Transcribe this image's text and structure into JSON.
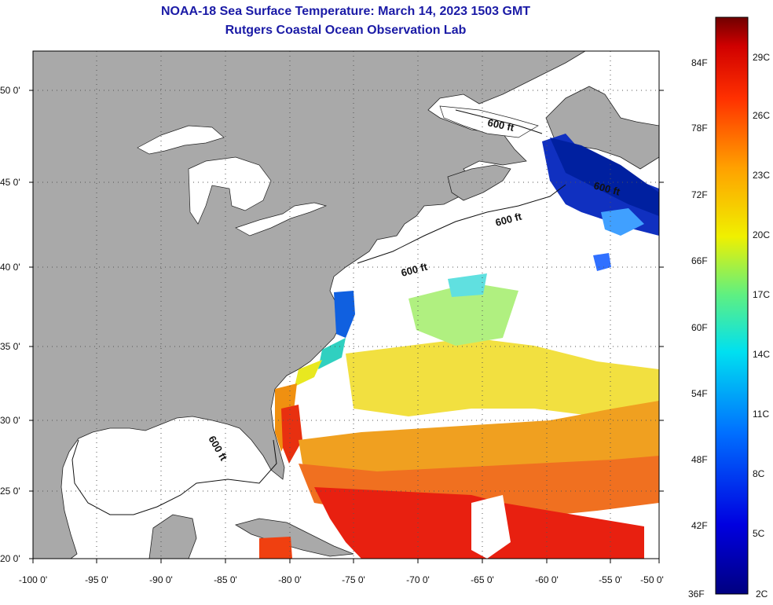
{
  "title_line1": "NOAA-18 Sea Surface Temperature:  March 14, 2023 1503 GMT",
  "title_line2": "Rutgers Coastal Ocean Observation Lab",
  "lat_labels": [
    "50 0'",
    "45 0'",
    "40 0'",
    "35 0'",
    "30 0'",
    "25 0'",
    "20 0'"
  ],
  "lon_labels": [
    "-100 0'",
    "-95 0'",
    "-90 0'",
    "-85 0'",
    "-80 0'",
    "-75 0'",
    "-70 0'",
    "-65 0'",
    "-60 0'",
    "-55 0'",
    "-50 0'"
  ],
  "contour_label": "600 ft",
  "colorbar": {
    "fahrenheit": [
      "84F",
      "78F",
      "72F",
      "66F",
      "60F",
      "54F",
      "48F",
      "42F",
      "36F"
    ],
    "celsius": [
      "29C",
      "26C",
      "23C",
      "20C",
      "17C",
      "14C",
      "11C",
      "8C",
      "5C",
      "2C"
    ]
  },
  "colors": {
    "land": "#a9a9a9",
    "title": "#1a1aa6",
    "no_data": "#ffffff"
  }
}
